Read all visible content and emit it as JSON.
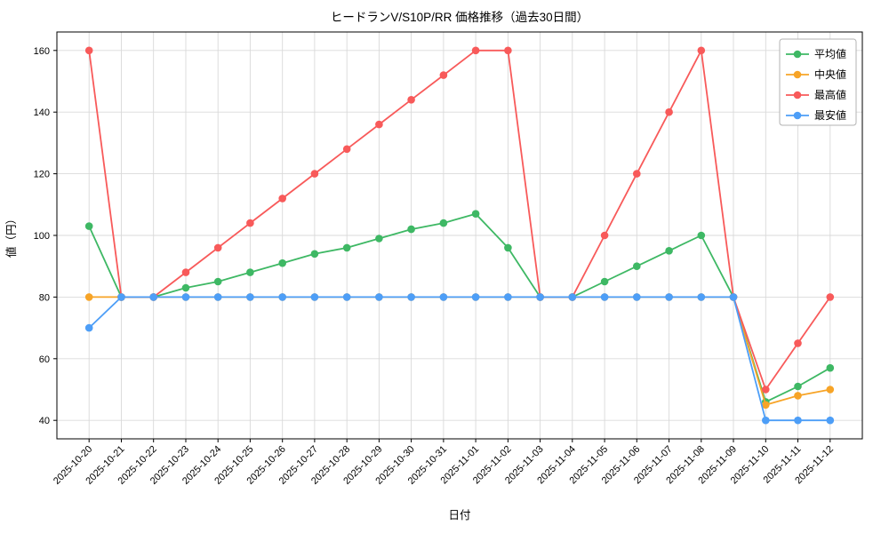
{
  "figure": {
    "title": "ヒードランV/S10P/RR 価格推移（過去30日間）"
  },
  "chart_data": {
    "type": "line",
    "title": "ヒードランV/S10P/RR 価格推移（過去30日間）",
    "xlabel": "日付",
    "ylabel": "値（円）",
    "x": [
      "2025-10-20",
      "2025-10-21",
      "2025-10-22",
      "2025-10-23",
      "2025-10-24",
      "2025-10-25",
      "2025-10-26",
      "2025-10-27",
      "2025-10-28",
      "2025-10-29",
      "2025-10-30",
      "2025-10-31",
      "2025-11-01",
      "2025-11-02",
      "2025-11-03",
      "2025-11-04",
      "2025-11-05",
      "2025-11-06",
      "2025-11-07",
      "2025-11-08",
      "2025-11-09",
      "2025-11-10",
      "2025-11-11",
      "2025-11-12"
    ],
    "series": [
      {
        "name": "平均値",
        "color": "#3eb864",
        "marker": "circle",
        "values": [
          103,
          80,
          80,
          83,
          85,
          88,
          91,
          94,
          96,
          99,
          102,
          104,
          107,
          96,
          80,
          80,
          85,
          90,
          95,
          100,
          80,
          46,
          51,
          57
        ]
      },
      {
        "name": "中央値",
        "color": "#f7a427",
        "marker": "circle",
        "values": [
          80,
          80,
          80,
          80,
          80,
          80,
          80,
          80,
          80,
          80,
          80,
          80,
          80,
          80,
          80,
          80,
          80,
          80,
          80,
          80,
          80,
          45,
          48,
          50
        ]
      },
      {
        "name": "最高値",
        "color": "#f85a5a",
        "marker": "circle",
        "values": [
          160,
          80,
          80,
          88,
          96,
          104,
          112,
          120,
          128,
          136,
          144,
          152,
          160,
          160,
          80,
          80,
          100,
          120,
          140,
          160,
          80,
          50,
          65,
          80
        ]
      },
      {
        "name": "最安値",
        "color": "#4d9ef7",
        "marker": "circle",
        "values": [
          70,
          80,
          80,
          80,
          80,
          80,
          80,
          80,
          80,
          80,
          80,
          80,
          80,
          80,
          80,
          80,
          80,
          80,
          80,
          80,
          80,
          40,
          40,
          40
        ]
      }
    ],
    "yticks": [
      40,
      60,
      80,
      100,
      120,
      140,
      160
    ],
    "ylim": [
      34,
      166
    ],
    "grid": true,
    "grid_color": "#d9d9d9",
    "legend_position": "upper right"
  }
}
